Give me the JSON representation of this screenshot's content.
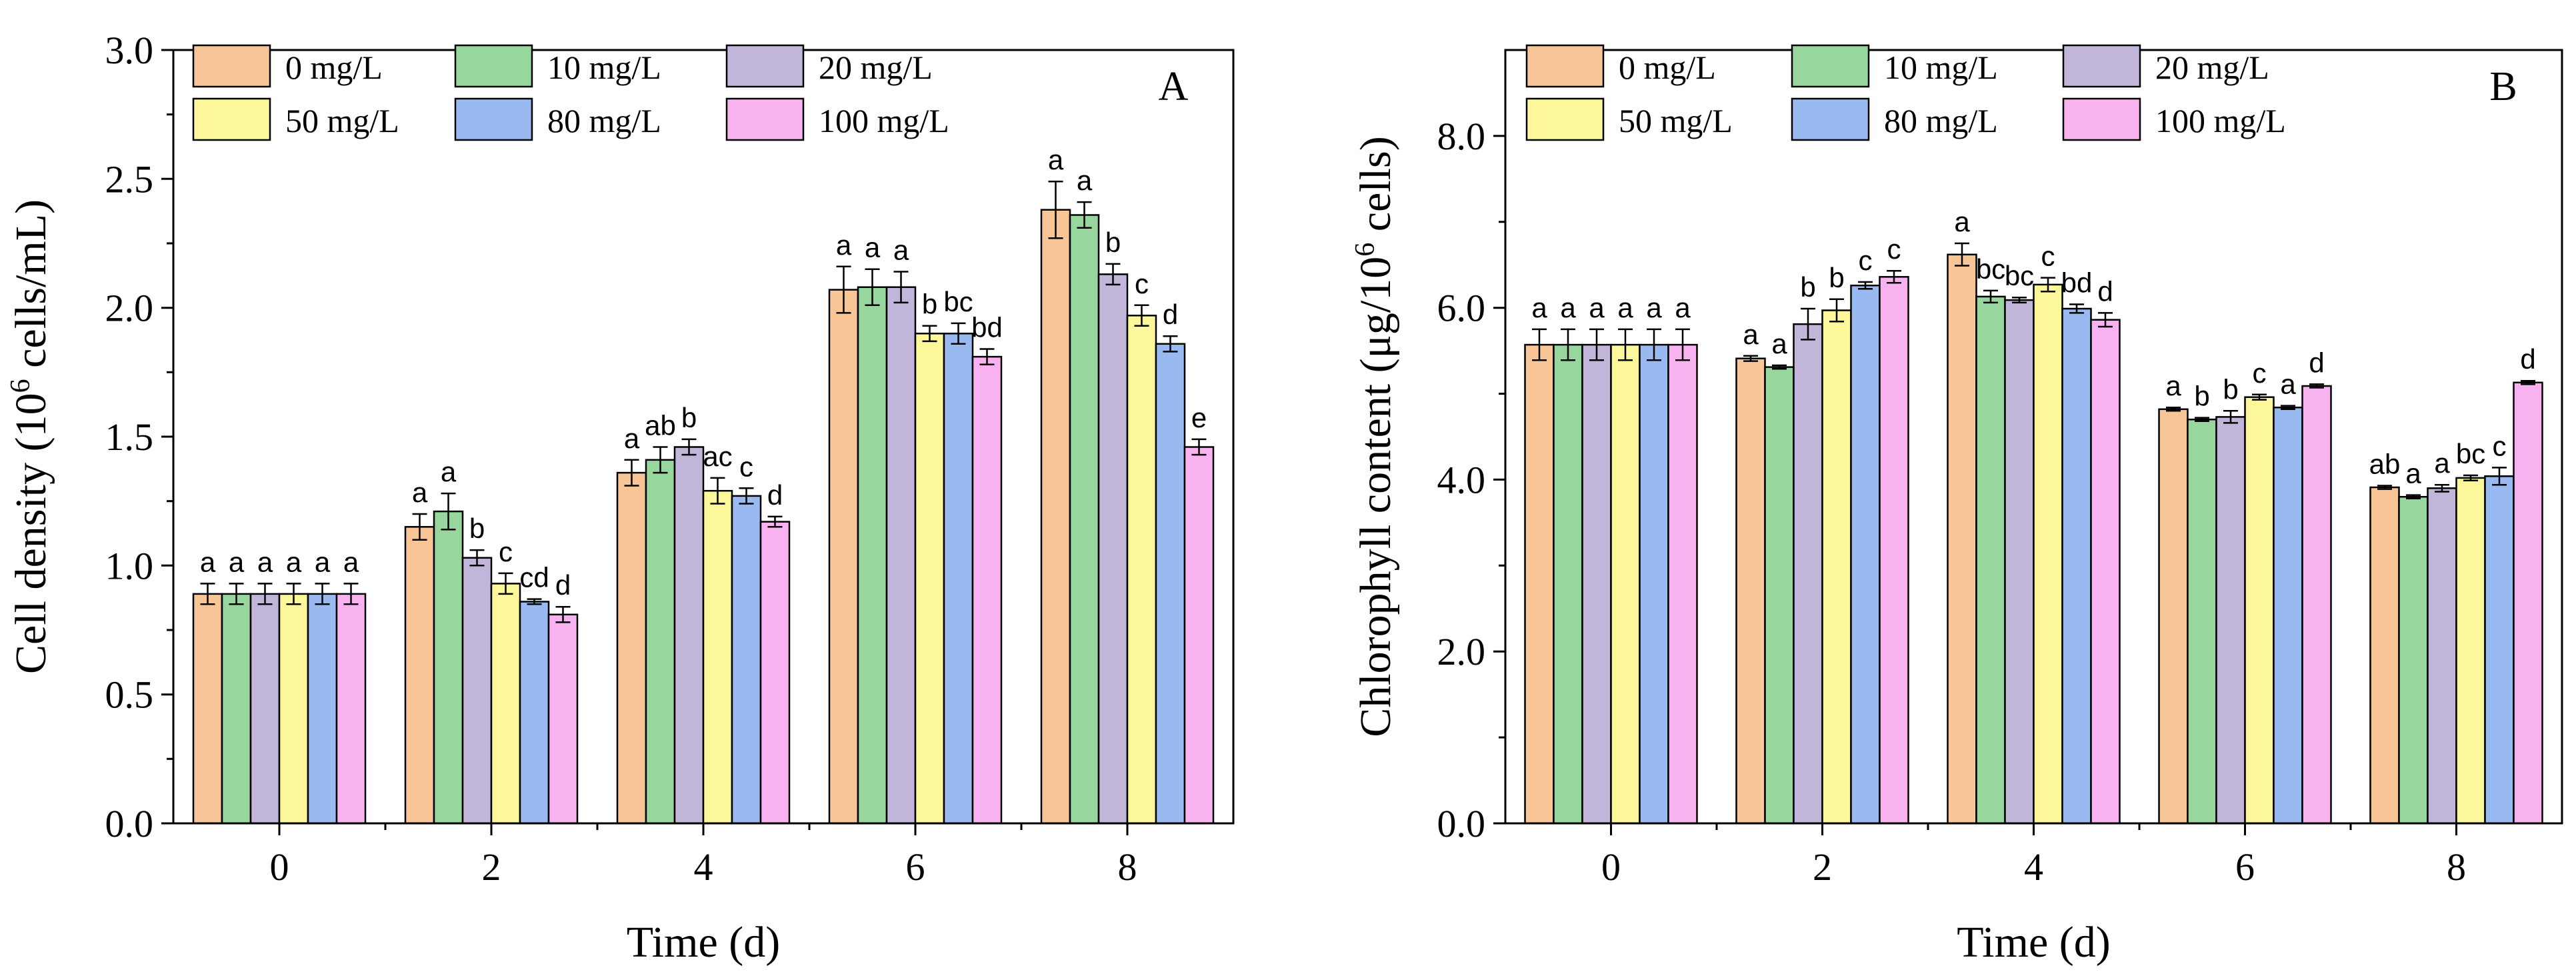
{
  "colors": {
    "c0": "#F8C596",
    "c10": "#97D69C",
    "c20": "#C2B5DA",
    "c50": "#FBF79A",
    "c80": "#99BAF0",
    "c100": "#F8B2F0"
  },
  "chart_data": [
    {
      "type": "bar",
      "panel_label": "A",
      "xlabel": "Time (d)",
      "ylabel_pre": "Cell density (10",
      "ylabel_sup": "6",
      "ylabel_post": " cells/mL)",
      "categories": [
        "0",
        "2",
        "4",
        "6",
        "8"
      ],
      "ylim": [
        0,
        3.0
      ],
      "yticks": [
        "0.0",
        "0.5",
        "1.0",
        "1.5",
        "2.0",
        "2.5",
        "3.0"
      ],
      "legend": [
        "0 mg/L",
        "10 mg/L",
        "20 mg/L",
        "50 mg/L",
        "80 mg/L",
        "100 mg/L"
      ],
      "series": [
        {
          "name": "0 mg/L",
          "color_key": "c0",
          "values": [
            0.89,
            1.15,
            1.36,
            2.07,
            2.38
          ],
          "errors": [
            0.04,
            0.05,
            0.05,
            0.09,
            0.11
          ],
          "letters": [
            "a",
            "a",
            "a",
            "a",
            "a"
          ]
        },
        {
          "name": "10 mg/L",
          "color_key": "c10",
          "values": [
            0.89,
            1.21,
            1.41,
            2.08,
            2.36
          ],
          "errors": [
            0.04,
            0.07,
            0.05,
            0.07,
            0.05
          ],
          "letters": [
            "a",
            "a",
            "ab",
            "a",
            "a"
          ]
        },
        {
          "name": "20 mg/L",
          "color_key": "c20",
          "values": [
            0.89,
            1.03,
            1.46,
            2.08,
            2.13
          ],
          "errors": [
            0.04,
            0.03,
            0.03,
            0.06,
            0.04
          ],
          "letters": [
            "a",
            "b",
            "b",
            "a",
            "b"
          ]
        },
        {
          "name": "50 mg/L",
          "color_key": "c50",
          "values": [
            0.89,
            0.93,
            1.29,
            1.9,
            1.97
          ],
          "errors": [
            0.04,
            0.04,
            0.05,
            0.03,
            0.04
          ],
          "letters": [
            "a",
            "c",
            "ac",
            "b",
            "c"
          ]
        },
        {
          "name": "80 mg/L",
          "color_key": "c80",
          "values": [
            0.89,
            0.86,
            1.27,
            1.9,
            1.86
          ],
          "errors": [
            0.04,
            0.01,
            0.03,
            0.04,
            0.03
          ],
          "letters": [
            "a",
            "cd",
            "c",
            "bc",
            "d"
          ]
        },
        {
          "name": "100 mg/L",
          "color_key": "c100",
          "values": [
            0.89,
            0.81,
            1.17,
            1.81,
            1.46
          ],
          "errors": [
            0.04,
            0.03,
            0.02,
            0.03,
            0.03
          ],
          "letters": [
            "a",
            "d",
            "d",
            "bd",
            "e"
          ]
        }
      ]
    },
    {
      "type": "bar",
      "panel_label": "B",
      "xlabel": "Time (d)",
      "ylabel_pre": "Chlorophyll content (μg/10",
      "ylabel_sup": "6",
      "ylabel_post": " cells)",
      "categories": [
        "0",
        "2",
        "4",
        "6",
        "8"
      ],
      "ylim": [
        0,
        9.0
      ],
      "yticks": [
        "0.0",
        "2.0",
        "4.0",
        "6.0",
        "8.0"
      ],
      "legend": [
        "0 mg/L",
        "10 mg/L",
        "20 mg/L",
        "50 mg/L",
        "80 mg/L",
        "100 mg/L"
      ],
      "series": [
        {
          "name": "0 mg/L",
          "color_key": "c0",
          "values": [
            5.57,
            5.41,
            6.62,
            4.82,
            3.91
          ],
          "errors": [
            0.18,
            0.03,
            0.13,
            0.02,
            0.02
          ],
          "letters": [
            "a",
            "a",
            "a",
            "a",
            "ab"
          ]
        },
        {
          "name": "10 mg/L",
          "color_key": "c10",
          "values": [
            5.57,
            5.31,
            6.13,
            4.7,
            3.8
          ],
          "errors": [
            0.18,
            0.02,
            0.07,
            0.02,
            0.02
          ],
          "letters": [
            "a",
            "a",
            "bc",
            "b",
            "a"
          ]
        },
        {
          "name": "20 mg/L",
          "color_key": "c20",
          "values": [
            5.57,
            5.81,
            6.09,
            4.73,
            3.9
          ],
          "errors": [
            0.18,
            0.18,
            0.03,
            0.07,
            0.04
          ],
          "letters": [
            "a",
            "b",
            "bc",
            "b",
            "a"
          ]
        },
        {
          "name": "50 mg/L",
          "color_key": "c50",
          "values": [
            5.57,
            5.97,
            6.27,
            4.96,
            4.02
          ],
          "errors": [
            0.18,
            0.13,
            0.08,
            0.03,
            0.03
          ],
          "letters": [
            "a",
            "b",
            "c",
            "c",
            "bc"
          ]
        },
        {
          "name": "80 mg/L",
          "color_key": "c80",
          "values": [
            5.57,
            6.26,
            5.99,
            4.84,
            4.04
          ],
          "errors": [
            0.18,
            0.04,
            0.05,
            0.02,
            0.1
          ],
          "letters": [
            "a",
            "c",
            "bd",
            "a",
            "c"
          ]
        },
        {
          "name": "100 mg/L",
          "color_key": "c100",
          "values": [
            5.57,
            6.36,
            5.86,
            5.09,
            5.13
          ],
          "errors": [
            0.18,
            0.07,
            0.08,
            0.02,
            0.02
          ],
          "letters": [
            "a",
            "c",
            "d",
            "d",
            "d"
          ]
        }
      ]
    }
  ]
}
